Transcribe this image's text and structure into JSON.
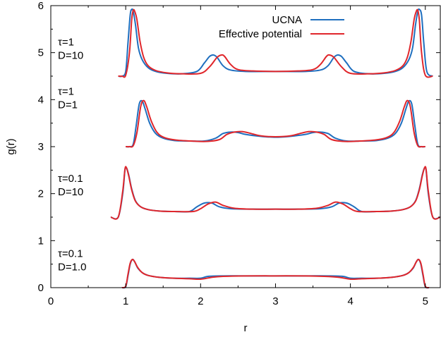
{
  "chart_data": {
    "type": "line",
    "xlabel": "r",
    "ylabel": "g(r)",
    "xlim": [
      0,
      5.2
    ],
    "ylim": [
      0,
      6
    ],
    "xticks": [
      0,
      1,
      2,
      3,
      4,
      5
    ],
    "yticks": [
      0,
      1,
      2,
      3,
      4,
      5,
      6
    ],
    "grid": false,
    "legend": {
      "placement": "top-center",
      "entries": [
        "UCNA",
        "Effective potential"
      ]
    },
    "colors": {
      "UCNA": "#1f6fbf",
      "Effective potential": "#e0262b"
    },
    "annotations": [
      {
        "line1": "τ=1",
        "line2": "D=10"
      },
      {
        "line1": "τ=1",
        "line2": "D=1"
      },
      {
        "line1": "τ=0.1",
        "line2": "D=10"
      },
      {
        "line1": "τ=0.1",
        "line2": "D=1.0"
      }
    ],
    "panels": [
      {
        "label": "τ=1, D=10",
        "series": [
          {
            "name": "UCNA",
            "x": [
              0.9,
              0.95,
              1.0,
              1.03,
              1.06,
              1.08,
              1.1,
              1.13,
              1.17,
              1.22,
              1.3,
              1.4,
              1.55,
              1.75,
              1.95,
              2.05,
              2.12,
              2.17,
              2.22,
              2.3,
              2.4,
              2.6,
              3.0,
              3.4,
              3.6,
              3.7,
              3.78,
              3.83,
              3.88,
              3.95,
              4.05,
              4.25,
              4.45,
              4.6,
              4.7,
              4.78,
              4.83,
              4.87,
              4.9,
              4.92,
              4.95,
              4.98,
              5.02,
              5.1
            ],
            "y": [
              4.5,
              4.5,
              4.6,
              5.2,
              5.8,
              5.92,
              5.88,
              5.6,
              5.1,
              4.85,
              4.68,
              4.6,
              4.56,
              4.55,
              4.6,
              4.78,
              4.92,
              4.95,
              4.9,
              4.72,
              4.63,
              4.6,
              4.6,
              4.6,
              4.63,
              4.72,
              4.9,
              4.95,
              4.92,
              4.78,
              4.6,
              4.55,
              4.56,
              4.6,
              4.68,
              4.85,
              5.1,
              5.6,
              5.88,
              5.92,
              5.8,
              5.2,
              4.6,
              4.5
            ]
          },
          {
            "name": "Effective potential",
            "x": [
              0.9,
              0.95,
              1.0,
              1.05,
              1.08,
              1.1,
              1.12,
              1.15,
              1.19,
              1.24,
              1.3,
              1.4,
              1.55,
              1.75,
              2.0,
              2.12,
              2.22,
              2.28,
              2.32,
              2.4,
              2.5,
              2.7,
              3.0,
              3.3,
              3.5,
              3.6,
              3.68,
              3.72,
              3.78,
              3.88,
              4.0,
              4.25,
              4.45,
              4.6,
              4.7,
              4.76,
              4.81,
              4.85,
              4.88,
              4.9,
              4.92,
              4.95,
              5.0,
              5.1
            ],
            "y": [
              4.5,
              4.5,
              4.52,
              5.0,
              5.7,
              5.9,
              5.88,
              5.7,
              5.25,
              4.9,
              4.72,
              4.62,
              4.57,
              4.55,
              4.56,
              4.7,
              4.9,
              4.95,
              4.92,
              4.75,
              4.64,
              4.61,
              4.6,
              4.61,
              4.64,
              4.75,
              4.92,
              4.95,
              4.9,
              4.7,
              4.56,
              4.55,
              4.57,
              4.62,
              4.72,
              4.9,
              5.25,
              5.7,
              5.88,
              5.9,
              5.7,
              5.0,
              4.52,
              4.5
            ]
          }
        ]
      },
      {
        "label": "τ=1, D=1",
        "series": [
          {
            "name": "UCNA",
            "x": [
              1.0,
              1.05,
              1.1,
              1.14,
              1.18,
              1.22,
              1.26,
              1.32,
              1.4,
              1.5,
              1.65,
              1.85,
              2.05,
              2.2,
              2.3,
              2.4,
              2.5,
              2.6,
              2.8,
              3.0,
              3.2,
              3.4,
              3.5,
              3.6,
              3.7,
              3.8,
              3.95,
              4.15,
              4.35,
              4.5,
              4.6,
              4.68,
              4.74,
              4.78,
              4.82,
              4.86,
              4.9,
              4.95,
              5.0
            ],
            "y": [
              3.0,
              3.0,
              3.05,
              3.45,
              3.9,
              3.97,
              3.8,
              3.5,
              3.28,
              3.18,
              3.13,
              3.12,
              3.12,
              3.18,
              3.28,
              3.31,
              3.3,
              3.26,
              3.22,
              3.2,
              3.22,
              3.26,
              3.3,
              3.31,
              3.28,
              3.18,
              3.12,
              3.12,
              3.13,
              3.18,
              3.28,
              3.5,
              3.8,
              3.97,
              3.9,
              3.45,
              3.05,
              3.0,
              3.0
            ]
          },
          {
            "name": "Effective potential",
            "x": [
              1.0,
              1.05,
              1.1,
              1.15,
              1.2,
              1.24,
              1.28,
              1.34,
              1.42,
              1.52,
              1.67,
              1.87,
              2.07,
              2.25,
              2.35,
              2.45,
              2.55,
              2.65,
              2.8,
              3.0,
              3.2,
              3.35,
              3.45,
              3.55,
              3.65,
              3.75,
              3.93,
              4.13,
              4.33,
              4.48,
              4.58,
              4.66,
              4.72,
              4.76,
              4.8,
              4.85,
              4.9,
              4.95,
              5.0
            ],
            "y": [
              3.0,
              3.0,
              3.02,
              3.3,
              3.85,
              3.98,
              3.85,
              3.55,
              3.3,
              3.19,
              3.14,
              3.12,
              3.11,
              3.15,
              3.26,
              3.31,
              3.32,
              3.29,
              3.23,
              3.21,
              3.23,
              3.29,
              3.32,
              3.31,
              3.26,
              3.15,
              3.11,
              3.12,
              3.14,
              3.19,
              3.3,
              3.55,
              3.85,
              3.98,
              3.85,
              3.3,
              3.02,
              3.0,
              3.0
            ]
          }
        ]
      },
      {
        "label": "τ=0.1, D=10",
        "series": [
          {
            "name": "UCNA",
            "x": [
              0.8,
              0.9,
              0.96,
              0.99,
              1.01,
              1.04,
              1.08,
              1.13,
              1.2,
              1.3,
              1.45,
              1.65,
              1.85,
              1.95,
              2.05,
              2.15,
              2.25,
              2.4,
              2.7,
              3.0,
              3.3,
              3.6,
              3.75,
              3.85,
              3.95,
              4.05,
              4.15,
              4.35,
              4.55,
              4.7,
              4.8,
              4.87,
              4.92,
              4.96,
              4.99,
              5.01,
              5.04,
              5.1,
              5.2
            ],
            "y": [
              1.5,
              1.5,
              2.0,
              2.5,
              2.55,
              2.4,
              2.1,
              1.85,
              1.72,
              1.66,
              1.63,
              1.62,
              1.62,
              1.72,
              1.8,
              1.8,
              1.72,
              1.68,
              1.67,
              1.67,
              1.67,
              1.68,
              1.72,
              1.8,
              1.8,
              1.72,
              1.62,
              1.62,
              1.63,
              1.66,
              1.72,
              1.85,
              2.1,
              2.4,
              2.55,
              2.5,
              2.0,
              1.5,
              1.5
            ]
          },
          {
            "name": "Effective potential",
            "x": [
              0.8,
              0.9,
              0.96,
              0.99,
              1.01,
              1.04,
              1.08,
              1.13,
              1.2,
              1.3,
              1.45,
              1.65,
              1.9,
              2.0,
              2.1,
              2.2,
              2.3,
              2.45,
              2.7,
              3.0,
              3.3,
              3.55,
              3.7,
              3.8,
              3.9,
              4.0,
              4.1,
              4.35,
              4.55,
              4.7,
              4.8,
              4.87,
              4.92,
              4.96,
              4.99,
              5.01,
              5.04,
              5.1,
              5.2
            ],
            "y": [
              1.5,
              1.5,
              2.05,
              2.52,
              2.55,
              2.38,
              2.08,
              1.84,
              1.72,
              1.66,
              1.63,
              1.62,
              1.62,
              1.68,
              1.78,
              1.82,
              1.75,
              1.69,
              1.67,
              1.67,
              1.67,
              1.69,
              1.75,
              1.82,
              1.78,
              1.68,
              1.62,
              1.62,
              1.63,
              1.66,
              1.72,
              1.84,
              2.08,
              2.38,
              2.55,
              2.52,
              2.05,
              1.5,
              1.5
            ]
          }
        ]
      },
      {
        "label": "τ=0.1, D=1.0",
        "series": [
          {
            "name": "UCNA",
            "x": [
              0.95,
              1.0,
              1.03,
              1.06,
              1.09,
              1.12,
              1.16,
              1.22,
              1.3,
              1.45,
              1.65,
              1.85,
              2.0,
              2.1,
              2.3,
              2.6,
              3.0,
              3.4,
              3.7,
              3.9,
              4.0,
              4.15,
              4.35,
              4.55,
              4.7,
              4.78,
              4.84,
              4.88,
              4.91,
              4.94,
              4.97,
              5.0,
              5.05
            ],
            "y": [
              0.0,
              0.02,
              0.25,
              0.5,
              0.6,
              0.55,
              0.42,
              0.32,
              0.26,
              0.22,
              0.2,
              0.2,
              0.2,
              0.24,
              0.25,
              0.25,
              0.25,
              0.25,
              0.25,
              0.24,
              0.2,
              0.2,
              0.2,
              0.22,
              0.26,
              0.32,
              0.42,
              0.55,
              0.6,
              0.5,
              0.25,
              0.02,
              0.0
            ]
          },
          {
            "name": "Effective potential",
            "x": [
              0.95,
              1.0,
              1.03,
              1.06,
              1.09,
              1.12,
              1.16,
              1.22,
              1.3,
              1.45,
              1.65,
              1.85,
              2.0,
              2.15,
              2.3,
              2.6,
              3.0,
              3.4,
              3.65,
              3.85,
              4.0,
              4.15,
              4.35,
              4.55,
              4.7,
              4.78,
              4.84,
              4.88,
              4.91,
              4.94,
              4.97,
              5.0,
              5.05
            ],
            "y": [
              0.0,
              0.03,
              0.28,
              0.52,
              0.6,
              0.55,
              0.43,
              0.32,
              0.26,
              0.22,
              0.2,
              0.19,
              0.18,
              0.22,
              0.24,
              0.25,
              0.25,
              0.25,
              0.24,
              0.22,
              0.18,
              0.19,
              0.2,
              0.22,
              0.26,
              0.32,
              0.43,
              0.55,
              0.6,
              0.52,
              0.28,
              0.03,
              0.0
            ]
          }
        ]
      }
    ]
  }
}
